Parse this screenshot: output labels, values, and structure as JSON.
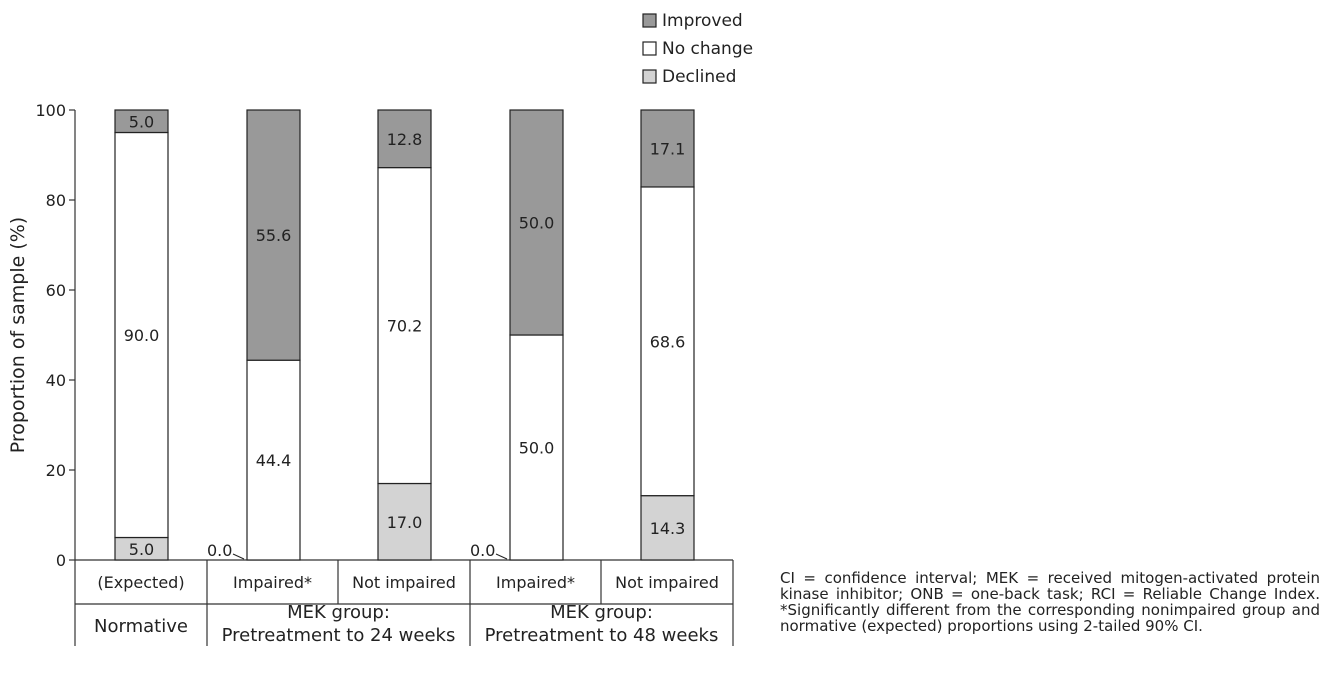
{
  "chart_data": {
    "type": "bar",
    "stacked": true,
    "ylabel": "Proportion of sample (%)",
    "ylim": [
      0,
      100
    ],
    "yticks": [
      0,
      20,
      40,
      60,
      80,
      100
    ],
    "categories": [
      "(Expected)",
      "Impaired*",
      "Not impaired",
      "Impaired*",
      "Not impaired"
    ],
    "groups": [
      {
        "label_lines": [
          "Normative"
        ],
        "categories": [
          0
        ]
      },
      {
        "label_lines": [
          "MEK group:",
          "Pretreatment to 24 weeks"
        ],
        "categories": [
          1,
          2
        ]
      },
      {
        "label_lines": [
          "MEK group:",
          "Pretreatment to 48 weeks"
        ],
        "categories": [
          3,
          4
        ]
      }
    ],
    "series": [
      {
        "name": "Declined",
        "color": "#d3d3d3",
        "values": [
          5.0,
          0.0,
          17.0,
          0.0,
          14.3
        ]
      },
      {
        "name": "No change",
        "color": "#ffffff",
        "values": [
          90.0,
          44.4,
          70.2,
          50.0,
          68.6
        ]
      },
      {
        "name": "Improved",
        "color": "#999999",
        "values": [
          5.0,
          55.6,
          12.8,
          50.0,
          17.1
        ]
      }
    ],
    "data_labels": [
      [
        "5.0",
        "90.0",
        "5.0"
      ],
      [
        "0.0",
        "44.4",
        "55.6"
      ],
      [
        "17.0",
        "70.2",
        "12.8"
      ],
      [
        "0.0",
        "50.0",
        "50.0"
      ],
      [
        "14.3",
        "68.6",
        "17.1"
      ]
    ],
    "legend": {
      "position": "top-right",
      "entries": [
        {
          "label": "Improved",
          "color": "#999999"
        },
        {
          "label": "No change",
          "color": "#ffffff"
        },
        {
          "label": "Declined",
          "color": "#d3d3d3"
        }
      ]
    }
  },
  "caption": "CI = confidence interval; MEK = received mitogen-activated protein kinase inhibitor; ONB = one-back task; RCI = Reliable Change Index. *Significantly different from the corresponding nonimpaired group and normative (expected) proportions using 2-tailed 90% CI."
}
